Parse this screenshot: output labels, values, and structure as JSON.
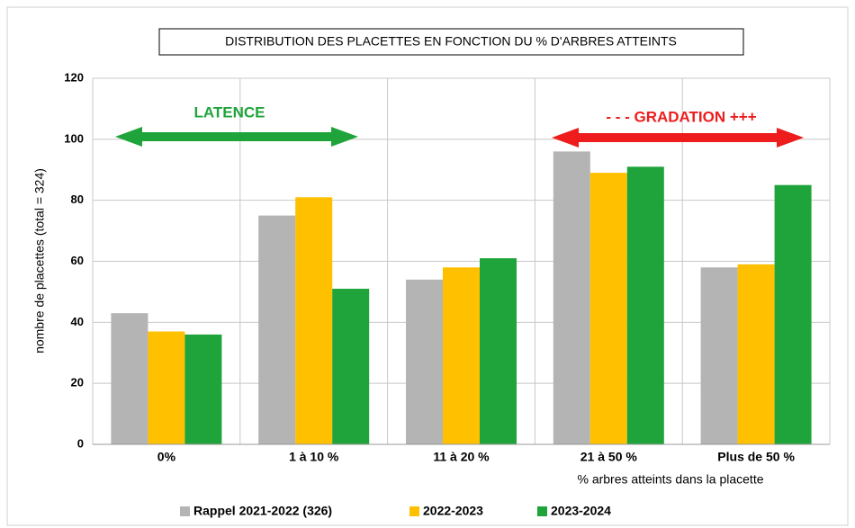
{
  "chart_data": {
    "type": "bar",
    "title": "DISTRIBUTION DES PLACETTES EN FONCTION DU % D'ARBRES ATTEINTS",
    "y_label": "nombre de placettes (total = 324)",
    "x_label": "% arbres atteints dans la placette",
    "annotations": [
      "LATENCE",
      "- - - GRADATION +++"
    ],
    "categories": [
      "0%",
      "1 à 10 %",
      "11 à 20 %",
      "21 à 50 %",
      "Plus de 50 %"
    ],
    "series": [
      {
        "name": "Rappel 2021-2022 (326)",
        "color": "#b4b4b4",
        "values": [
          43,
          75,
          54,
          96,
          58
        ]
      },
      {
        "name": "2022-2023",
        "color": "#ffc000",
        "values": [
          37,
          81,
          58,
          89,
          59
        ]
      },
      {
        "name": "2023-2024",
        "color": "#1ea43a",
        "values": [
          36,
          51,
          61,
          91,
          85
        ]
      }
    ],
    "ylim": [
      0,
      120
    ],
    "yticks": [
      0,
      20,
      40,
      60,
      80,
      100,
      120
    ],
    "grid": true,
    "legend": "bottom"
  }
}
